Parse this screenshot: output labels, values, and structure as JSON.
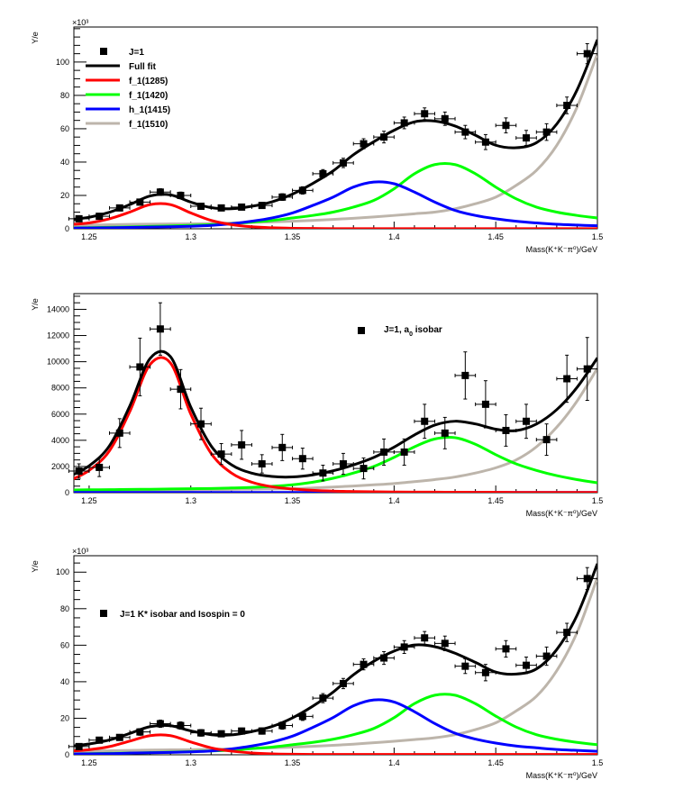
{
  "chart_data": [
    {
      "type": "line",
      "title": "",
      "xlabel": "Mass(K⁺K⁻π⁰)/GeV",
      "ylabel": "Y/e",
      "y_multiplier": "×10³",
      "xlim": [
        1.2425,
        1.5
      ],
      "ylim": [
        0,
        121
      ],
      "x_ticks": [
        1.25,
        1.3,
        1.35,
        1.4,
        1.45,
        1.5
      ],
      "x_tick_labels": [
        "1.25",
        "1.3",
        "1.35",
        "1.4",
        "1.45",
        "1.5"
      ],
      "y_ticks": [
        0,
        20,
        40,
        60,
        80,
        100
      ],
      "y_tick_labels": [
        "0",
        "20",
        "40",
        "60",
        "80",
        "100"
      ],
      "y_minor": 5,
      "legend_placement": "top-left",
      "legend": [
        "J=1",
        "Full fit",
        "f_1(1285)",
        "f_1(1420)",
        "h_1(1415)",
        "f_1(1510)"
      ],
      "points": {
        "name": "J=1",
        "x": [
          1.245,
          1.255,
          1.265,
          1.275,
          1.285,
          1.295,
          1.305,
          1.315,
          1.325,
          1.335,
          1.345,
          1.355,
          1.365,
          1.375,
          1.385,
          1.395,
          1.405,
          1.415,
          1.425,
          1.435,
          1.445,
          1.455,
          1.465,
          1.475,
          1.485,
          1.495
        ],
        "y": [
          6,
          7.5,
          12.5,
          16,
          22,
          20,
          13.5,
          12.5,
          13,
          14,
          19,
          23,
          33,
          39.5,
          51,
          55,
          63.5,
          69,
          66,
          58,
          52,
          62,
          54.5,
          58,
          74,
          105
        ],
        "yerr": [
          1.2,
          1.3,
          1.5,
          1.8,
          2,
          2,
          1.8,
          1.6,
          1.6,
          1.7,
          2,
          2.2,
          2.5,
          2.8,
          3,
          3.5,
          3.5,
          3.5,
          4,
          4,
          4.5,
          4.5,
          4.5,
          5,
          5,
          6
        ]
      },
      "curve_x": [
        1.24,
        1.25,
        1.26,
        1.27,
        1.28,
        1.29,
        1.3,
        1.31,
        1.32,
        1.33,
        1.34,
        1.35,
        1.36,
        1.37,
        1.38,
        1.39,
        1.4,
        1.41,
        1.42,
        1.43,
        1.44,
        1.45,
        1.46,
        1.47,
        1.48,
        1.49,
        1.5
      ],
      "series": [
        {
          "name": "f_1(1285)",
          "color": "#ff0000",
          "values": [
            2.5,
            3.5,
            6,
            10,
            14.5,
            14.5,
            9.5,
            5,
            2.5,
            1.2,
            0.6,
            0.3,
            0.2,
            0.1,
            0.1,
            0.1,
            0.1,
            0.1,
            0.1,
            0.1,
            0.1,
            0.1,
            0.1,
            0.1,
            0.1,
            0.1,
            0.1
          ]
        },
        {
          "name": "f_1(1420)",
          "color": "#00ff00",
          "values": [
            0.5,
            0.7,
            0.9,
            1.1,
            1.4,
            1.7,
            2,
            2.5,
            3,
            4,
            5,
            6.5,
            8,
            10,
            13,
            17,
            24,
            33,
            38.5,
            38.5,
            33,
            25,
            18,
            13,
            10,
            8,
            6.5
          ]
        },
        {
          "name": "h_1(1415)",
          "color": "#0000ff",
          "values": [
            0.4,
            0.5,
            0.6,
            0.8,
            1,
            1.2,
            1.5,
            2,
            3,
            4.5,
            6.5,
            9.5,
            14,
            19,
            25,
            28,
            27,
            22,
            16,
            11,
            8,
            6,
            4.5,
            3.5,
            2.7,
            2.2,
            1.8
          ]
        },
        {
          "name": "f_1(1510)",
          "color": "#bdb5ab",
          "values": [
            2,
            2.2,
            2.4,
            2.6,
            2.8,
            2.9,
            3,
            3.2,
            3.5,
            3.8,
            4.1,
            4.5,
            5,
            5.6,
            6.3,
            7.1,
            8,
            9,
            10,
            12,
            15,
            19,
            26,
            35,
            50,
            73,
            105
          ]
        },
        {
          "name": "Full fit",
          "color": "#000000",
          "values": "sum"
        }
      ]
    },
    {
      "type": "line",
      "title": "",
      "xlabel": "Mass(K⁺K⁻π⁰)/GeV",
      "ylabel": "Y/e",
      "y_multiplier": "",
      "xlim": [
        1.2425,
        1.5
      ],
      "ylim": [
        0,
        15200
      ],
      "x_ticks": [
        1.25,
        1.3,
        1.35,
        1.4,
        1.45,
        1.5
      ],
      "x_tick_labels": [
        "1.25",
        "1.3",
        "1.35",
        "1.4",
        "1.45",
        "1.5"
      ],
      "y_ticks": [
        0,
        2000,
        4000,
        6000,
        8000,
        10000,
        12000,
        14000
      ],
      "y_tick_labels": [
        "0",
        "2000",
        "4000",
        "6000",
        "8000",
        "10000",
        "12000",
        "14000"
      ],
      "y_minor": 500,
      "legend_placement": "top-center",
      "legend": [
        "J=1, a",
        "0",
        " isobar"
      ],
      "points": {
        "name": "J=1, a0 isobar",
        "x": [
          1.245,
          1.255,
          1.265,
          1.275,
          1.285,
          1.295,
          1.305,
          1.315,
          1.325,
          1.335,
          1.345,
          1.355,
          1.365,
          1.375,
          1.385,
          1.395,
          1.405,
          1.415,
          1.425,
          1.435,
          1.445,
          1.455,
          1.465,
          1.475,
          1.485,
          1.495
        ],
        "y": [
          1650,
          1930,
          4550,
          9600,
          12500,
          7900,
          5250,
          2950,
          3650,
          2200,
          3450,
          2600,
          1500,
          2200,
          1850,
          3100,
          3100,
          5450,
          4550,
          8950,
          6750,
          4750,
          5450,
          4050,
          8700,
          9450
        ],
        "yerr": [
          550,
          700,
          1100,
          2200,
          2000,
          1500,
          1200,
          800,
          1100,
          700,
          1000,
          800,
          600,
          800,
          800,
          1000,
          1000,
          1300,
          1200,
          1800,
          1800,
          1200,
          1300,
          1200,
          1800,
          2400
        ]
      },
      "curve_x": [
        1.24,
        1.25,
        1.26,
        1.27,
        1.28,
        1.29,
        1.3,
        1.31,
        1.32,
        1.33,
        1.34,
        1.35,
        1.36,
        1.37,
        1.38,
        1.39,
        1.4,
        1.41,
        1.42,
        1.43,
        1.44,
        1.45,
        1.46,
        1.47,
        1.48,
        1.49,
        1.5
      ],
      "series": [
        {
          "name": "f_1(1285)",
          "color": "#ff0000",
          "values": [
            900,
            1700,
            3200,
            6200,
            9800,
            9900,
            6000,
            3000,
            1500,
            800,
            450,
            280,
            180,
            120,
            90,
            70,
            55,
            45,
            40,
            35,
            30,
            30,
            20,
            20,
            20,
            20,
            20
          ]
        },
        {
          "name": "f_1(1420)",
          "color": "#00ff00",
          "values": [
            200,
            220,
            230,
            250,
            260,
            280,
            300,
            320,
            360,
            400,
            480,
            600,
            800,
            1100,
            1500,
            2000,
            2700,
            3500,
            4100,
            4200,
            3700,
            2900,
            2200,
            1700,
            1300,
            1000,
            750
          ]
        },
        {
          "name": "h_1(1415)",
          "color": "#0000ff",
          "values": [
            20,
            20,
            20,
            20,
            20,
            20,
            20,
            20,
            20,
            20,
            20,
            20,
            20,
            20,
            20,
            20,
            20,
            20,
            20,
            20,
            20,
            20,
            20,
            20,
            20,
            20,
            20
          ]
        },
        {
          "name": "f_1(1510)",
          "color": "#bdb5ab",
          "values": [
            100,
            110,
            130,
            150,
            170,
            190,
            210,
            230,
            250,
            270,
            285,
            300,
            360,
            430,
            510,
            600,
            700,
            840,
            1000,
            1200,
            1500,
            1900,
            2500,
            3500,
            5000,
            7000,
            9500
          ]
        },
        {
          "name": "Full fit",
          "color": "#000000",
          "values": "sum"
        }
      ]
    },
    {
      "type": "line",
      "title": "",
      "xlabel": "Mass(K⁺K⁻π⁰)/GeV",
      "ylabel": "Y/e",
      "y_multiplier": "×10³",
      "xlim": [
        1.2425,
        1.5
      ],
      "ylim": [
        0,
        109
      ],
      "x_ticks": [
        1.25,
        1.3,
        1.35,
        1.4,
        1.45,
        1.5
      ],
      "x_tick_labels": [
        "1.25",
        "1.3",
        "1.35",
        "1.4",
        "1.45",
        "1.5"
      ],
      "y_ticks": [
        0,
        20,
        40,
        60,
        80,
        100
      ],
      "y_tick_labels": [
        "0",
        "20",
        "40",
        "60",
        "80",
        "100"
      ],
      "y_minor": 5,
      "legend_placement": "top-left",
      "legend": [
        "J=1 K* isobar and Isospin = 0"
      ],
      "points": {
        "name": "J=1 K* isobar and Isospin = 0",
        "x": [
          1.245,
          1.255,
          1.265,
          1.275,
          1.285,
          1.295,
          1.305,
          1.315,
          1.325,
          1.335,
          1.345,
          1.355,
          1.365,
          1.375,
          1.385,
          1.395,
          1.405,
          1.415,
          1.425,
          1.435,
          1.445,
          1.455,
          1.465,
          1.475,
          1.485,
          1.495
        ],
        "y": [
          4.5,
          8,
          9.5,
          12.5,
          17,
          16,
          12,
          11.5,
          13,
          13,
          16,
          21,
          31,
          39,
          49.5,
          53,
          59,
          64,
          61,
          48.5,
          45,
          58,
          49,
          54,
          67,
          96.5
        ],
        "yerr": [
          1.2,
          1.3,
          1.5,
          1.8,
          2,
          2,
          1.8,
          1.6,
          1.6,
          1.7,
          2,
          2.2,
          2.5,
          2.8,
          3,
          3.5,
          3.5,
          3.5,
          4,
          4,
          4.5,
          4.5,
          4.5,
          5,
          5,
          6
        ]
      },
      "curve_x": [
        1.24,
        1.25,
        1.26,
        1.27,
        1.28,
        1.29,
        1.3,
        1.31,
        1.32,
        1.33,
        1.34,
        1.35,
        1.36,
        1.37,
        1.38,
        1.39,
        1.4,
        1.41,
        1.42,
        1.43,
        1.44,
        1.45,
        1.46,
        1.47,
        1.48,
        1.49,
        1.5
      ],
      "series": [
        {
          "name": "f_1(1285)",
          "color": "#ff0000",
          "values": [
            2,
            2.8,
            4.5,
            7.5,
            10.5,
            10.5,
            7,
            3.8,
            2,
            1,
            0.5,
            0.3,
            0.2,
            0.2,
            0.2,
            0.2,
            0.2,
            0.2,
            0.2,
            0.2,
            0.2,
            0.2,
            0.2,
            0.2,
            0.2,
            0.2,
            0.2
          ]
        },
        {
          "name": "f_1(1420)",
          "color": "#00ff00",
          "values": [
            0.4,
            0.6,
            0.8,
            0.9,
            1.2,
            1.4,
            1.7,
            2.1,
            2.5,
            3.4,
            4.2,
            5.5,
            6.8,
            8.5,
            11,
            14.4,
            20.3,
            28,
            32.6,
            32.6,
            28,
            21.2,
            15.2,
            11,
            8.5,
            6.8,
            5.5
          ]
        },
        {
          "name": "h_1(1415)",
          "color": "#0000ff",
          "values": [
            0.4,
            0.5,
            0.6,
            0.9,
            1.1,
            1.3,
            1.6,
            2.1,
            3.2,
            4.8,
            7,
            10.2,
            15,
            20.4,
            26.8,
            30,
            28.9,
            23.6,
            17.1,
            11.8,
            8.6,
            6.4,
            4.8,
            3.8,
            2.9,
            2.4,
            1.9
          ]
        },
        {
          "name": "f_1(1510)",
          "color": "#bdb5ab",
          "values": [
            1.8,
            2,
            2.2,
            2.4,
            2.6,
            2.7,
            2.8,
            3,
            3.2,
            3.5,
            3.8,
            4.2,
            4.6,
            5.2,
            5.8,
            6.6,
            7.4,
            8.3,
            9.3,
            11,
            13.8,
            17.5,
            24,
            32,
            46,
            67,
            97
          ]
        },
        {
          "name": "Full fit",
          "color": "#000000",
          "values": "sum"
        }
      ]
    }
  ]
}
